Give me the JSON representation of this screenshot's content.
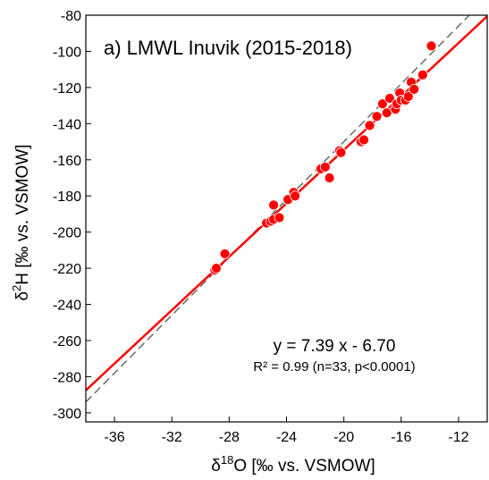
{
  "chart_data": {
    "type": "scatter",
    "title": "a) LMWL Inuvik (2015-2018)",
    "xlabel": {
      "main": "δ",
      "sup": "18",
      "rest": "O [‰ vs. VSMOW]"
    },
    "ylabel": {
      "main": "δ",
      "sup": "2",
      "rest": "H [‰ vs. VSMOW]"
    },
    "xlim": [
      -38,
      -10
    ],
    "ylim": [
      -305,
      -80
    ],
    "xticks": [
      -36,
      -32,
      -28,
      -24,
      -20,
      -16,
      -12
    ],
    "yticks": [
      -80,
      -100,
      -120,
      -140,
      -160,
      -180,
      -200,
      -220,
      -240,
      -260,
      -280,
      -300
    ],
    "grid": false,
    "colors": {
      "points": "#ff0000",
      "fit_line": "#ff0000",
      "gmwl_line": "#555555"
    },
    "fit": {
      "slope": 7.39,
      "intercept": -6.7
    },
    "reference_line": {
      "slope": 8,
      "intercept": 10,
      "style": "dashed"
    },
    "equation": "y = 7.39 x - 6.70",
    "stats": "R² = 0.99 (n=33, p<0.0001)",
    "points": [
      [
        -29.0,
        -221
      ],
      [
        -28.9,
        -220
      ],
      [
        -28.3,
        -212
      ],
      [
        -25.4,
        -195
      ],
      [
        -25.1,
        -194
      ],
      [
        -24.9,
        -185
      ],
      [
        -24.9,
        -193
      ],
      [
        -24.5,
        -192
      ],
      [
        -23.9,
        -182
      ],
      [
        -23.5,
        -178
      ],
      [
        -23.4,
        -180
      ],
      [
        -21.6,
        -165
      ],
      [
        -21.3,
        -164
      ],
      [
        -21.0,
        -170
      ],
      [
        -20.3,
        -155
      ],
      [
        -20.2,
        -156
      ],
      [
        -18.8,
        -150
      ],
      [
        -18.6,
        -149
      ],
      [
        -18.2,
        -141
      ],
      [
        -17.7,
        -136
      ],
      [
        -17.3,
        -129
      ],
      [
        -17.0,
        -134
      ],
      [
        -16.8,
        -126
      ],
      [
        -16.4,
        -132
      ],
      [
        -16.3,
        -129
      ],
      [
        -16.1,
        -123
      ],
      [
        -16.0,
        -127
      ],
      [
        -15.7,
        -127
      ],
      [
        -15.5,
        -125
      ],
      [
        -15.3,
        -117
      ],
      [
        -15.1,
        -121
      ],
      [
        -14.5,
        -113
      ],
      [
        -13.9,
        -97
      ]
    ]
  }
}
